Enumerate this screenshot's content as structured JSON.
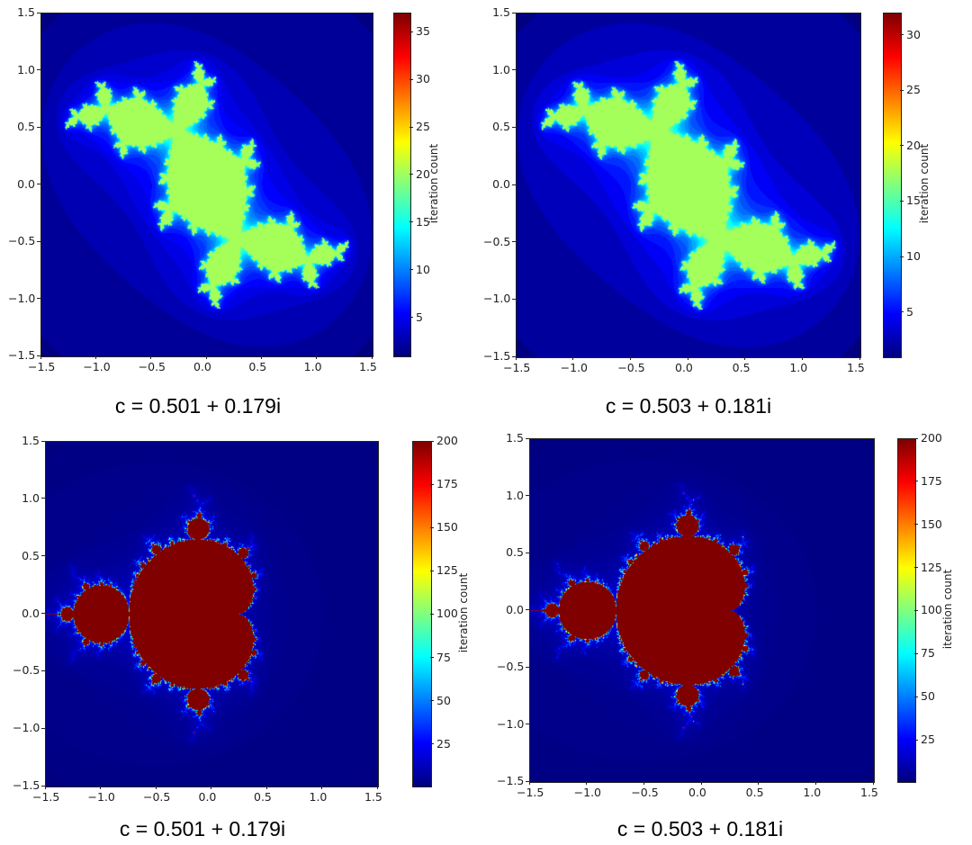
{
  "chart_data": [
    {
      "type": "heatmap",
      "fractal": "julia",
      "title": "c = 0.501 + 0.179i",
      "c": [
        0.501,
        0.179
      ],
      "xlim": [
        -1.5,
        1.5
      ],
      "ylim": [
        -1.5,
        1.5
      ],
      "xticks": [
        "−1.5",
        "−1.0",
        "−0.5",
        "0.0",
        "0.5",
        "1.0",
        "1.5"
      ],
      "yticks": [
        "−1.5",
        "−1.0",
        "−0.5",
        "0.0",
        "0.5",
        "1.0",
        "1.5"
      ],
      "colorbar": {
        "label": "iteration count",
        "range": [
          1,
          37
        ],
        "ticks": [
          5,
          10,
          15,
          20,
          25,
          30,
          35
        ],
        "colormap": "jet"
      }
    },
    {
      "type": "heatmap",
      "fractal": "julia",
      "title": "c = 0.503 + 0.181i",
      "c": [
        0.503,
        0.181
      ],
      "xlim": [
        -1.5,
        1.5
      ],
      "ylim": [
        -1.5,
        1.5
      ],
      "xticks": [
        "−1.5",
        "−1.0",
        "−0.5",
        "0.0",
        "0.5",
        "1.0",
        "1.5"
      ],
      "yticks": [
        "−1.5",
        "−1.0",
        "−0.5",
        "0.0",
        "0.5",
        "1.0",
        "1.5"
      ],
      "colorbar": {
        "label": "iteration count",
        "range": [
          1,
          32
        ],
        "ticks": [
          5,
          10,
          15,
          20,
          25,
          30
        ],
        "colormap": "jet"
      }
    },
    {
      "type": "heatmap",
      "fractal": "mandelbrot",
      "title": "c = 0.501 + 0.179i",
      "xlim": [
        -1.5,
        1.5
      ],
      "ylim": [
        -1.5,
        1.5
      ],
      "xticks": [
        "−1.5",
        "−1.0",
        "−0.5",
        "0.0",
        "0.5",
        "1.0",
        "1.5"
      ],
      "yticks": [
        "−1.5",
        "−1.0",
        "−0.5",
        "0.0",
        "0.5",
        "1.0",
        "1.5"
      ],
      "colorbar": {
        "label": "iteration count",
        "range": [
          1,
          200
        ],
        "ticks": [
          25,
          50,
          75,
          100,
          125,
          150,
          175,
          200
        ],
        "colormap": "jet"
      }
    },
    {
      "type": "heatmap",
      "fractal": "mandelbrot",
      "title": "c = 0.503 + 0.181i",
      "xlim": [
        -1.5,
        1.5
      ],
      "ylim": [
        -1.5,
        1.5
      ],
      "xticks": [
        "−1.5",
        "−1.0",
        "−0.5",
        "0.0",
        "0.5",
        "1.0",
        "1.5"
      ],
      "yticks": [
        "−1.5",
        "−1.0",
        "−0.5",
        "0.0",
        "0.5",
        "1.0",
        "1.5"
      ],
      "colorbar": {
        "label": "iteration count",
        "range": [
          1,
          200
        ],
        "ticks": [
          25,
          50,
          75,
          100,
          125,
          150,
          175,
          200
        ],
        "colormap": "jet"
      }
    }
  ]
}
